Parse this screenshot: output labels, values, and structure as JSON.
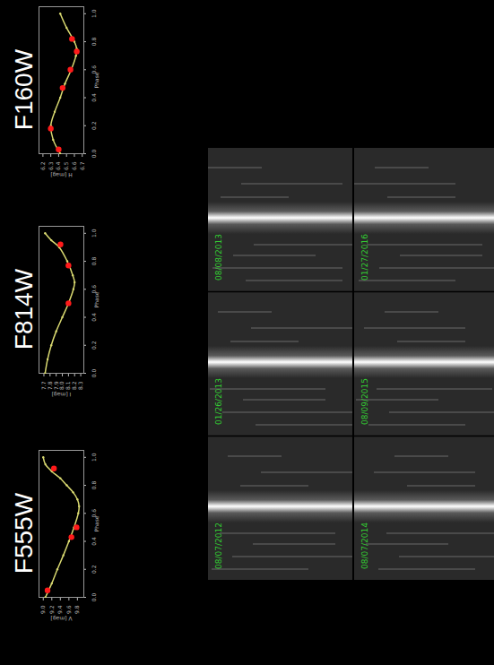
{
  "chart_data": [
    {
      "type": "line",
      "title": "F160W",
      "x_label": "Phase",
      "y_label": "H [mag]",
      "xlim": [
        0,
        1.05
      ],
      "xticks": [
        {
          "value": 0,
          "label": "0.0"
        },
        0.2,
        0.4,
        0.6,
        0.8,
        {
          "value": 1,
          "label": "1.0"
        }
      ],
      "ylim": [
        6.72,
        6.15
      ],
      "yticks": [
        6.2,
        6.3,
        6.4,
        6.5,
        6.6,
        6.7
      ],
      "x": [
        0,
        0.1,
        0.2,
        0.3,
        0.4,
        0.5,
        0.6,
        0.7,
        0.75,
        0.8,
        0.9,
        1.0
      ],
      "values": [
        6.42,
        6.33,
        6.3,
        6.35,
        6.42,
        6.48,
        6.56,
        6.62,
        6.63,
        6.6,
        6.5,
        6.42
      ],
      "color": "#d8d870",
      "markers": {
        "x": [
          0.03,
          0.18,
          0.47,
          0.6,
          0.73,
          0.82
        ],
        "values": [
          6.4,
          6.3,
          6.45,
          6.55,
          6.63,
          6.57
        ],
        "color": "#ff1a1a",
        "marker": "circle"
      }
    },
    {
      "type": "line",
      "title": "F814W",
      "x_label": "Phase",
      "y_label": "I [mag]",
      "xlim": [
        0,
        1.05
      ],
      "xticks": [
        {
          "value": 0,
          "label": "0.0"
        },
        0.2,
        0.4,
        0.6,
        0.8,
        {
          "value": 1,
          "label": "1.0"
        }
      ],
      "ylim": [
        8.35,
        7.62
      ],
      "yticks": [
        7.7,
        7.8,
        7.9,
        {
          "value": 8,
          "label": "8.0"
        },
        8.1,
        8.2,
        8.3
      ],
      "x": [
        0,
        0.1,
        0.2,
        0.3,
        0.4,
        0.5,
        0.6,
        0.65,
        0.7,
        0.8,
        0.9,
        0.95,
        1.0
      ],
      "values": [
        7.72,
        7.76,
        7.82,
        7.9,
        8.0,
        8.1,
        8.18,
        8.2,
        8.17,
        8.08,
        7.95,
        7.82,
        7.72
      ],
      "color": "#d8d870",
      "markers": {
        "x": [
          0.5,
          0.77,
          0.92
        ],
        "values": [
          8.1,
          8.1,
          7.97
        ],
        "color": "#ff1a1a",
        "marker": "circle"
      }
    },
    {
      "type": "line",
      "title": "F555W",
      "x_label": "Phase",
      "y_label": "V [mag]",
      "xlim": [
        0,
        1.05
      ],
      "xticks": [
        {
          "value": 0,
          "label": "0.0"
        },
        0.2,
        0.4,
        0.6,
        0.8,
        {
          "value": 1,
          "label": "1.0"
        }
      ],
      "ylim": [
        9.95,
        8.9
      ],
      "yticks": [
        {
          "value": 9,
          "label": "9.0"
        },
        9.2,
        9.4,
        9.6,
        9.8
      ],
      "x": [
        0,
        0.1,
        0.2,
        0.3,
        0.4,
        0.5,
        0.6,
        0.65,
        0.7,
        0.75,
        0.8,
        0.85,
        0.9,
        0.95,
        1.0
      ],
      "values": [
        9.05,
        9.2,
        9.33,
        9.47,
        9.6,
        9.72,
        9.82,
        9.84,
        9.8,
        9.7,
        9.55,
        9.4,
        9.2,
        9.05,
        9.0
      ],
      "color": "#d8d870",
      "markers": {
        "x": [
          0.05,
          0.43,
          0.5,
          0.92
        ],
        "values": [
          9.1,
          9.66,
          9.78,
          9.25
        ],
        "color": "#ff1a1a",
        "marker": "circle"
      }
    }
  ],
  "images": {
    "columns": [
      [
        "08/08/2013",
        "01/26/2013",
        "08/07/2012"
      ],
      [
        "01/27/2016",
        "08/09/2015",
        "08/07/2014"
      ]
    ]
  }
}
